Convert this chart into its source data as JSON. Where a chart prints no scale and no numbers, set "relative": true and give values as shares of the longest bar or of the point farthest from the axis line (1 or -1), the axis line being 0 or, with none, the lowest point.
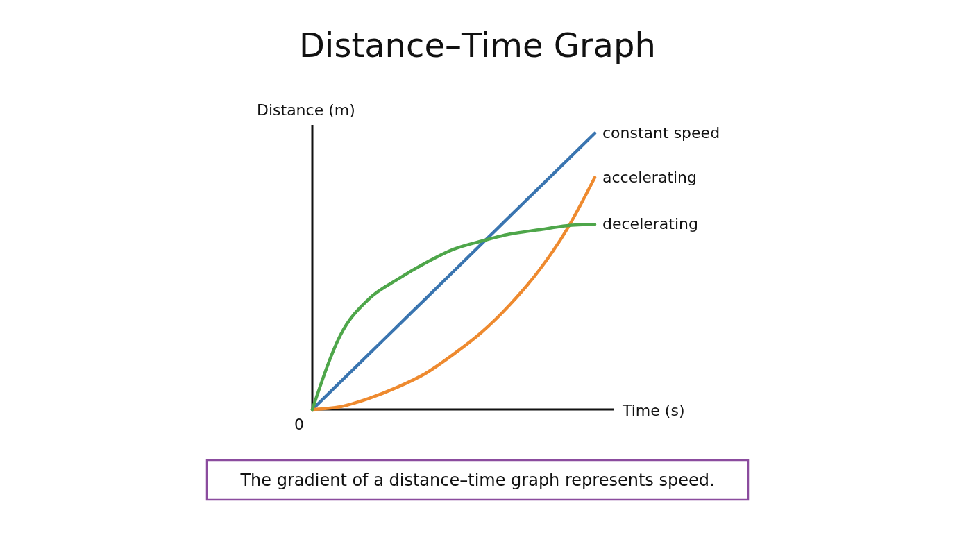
{
  "chart_data": {
    "type": "line",
    "title": "Distance–Time Graph",
    "xlabel": "Time (s)",
    "ylabel": "Distance (m)",
    "relative": true,
    "categories": [
      null,
      null,
      null,
      null,
      null,
      null,
      null,
      null,
      null,
      null,
      null
    ],
    "series": [
      {
        "name": "constant speed",
        "color": "#3a75b0",
        "values": [
          0,
          0.1,
          0.2,
          0.3,
          0.4,
          0.5,
          0.6,
          0.7,
          0.8,
          0.9,
          1
        ]
      },
      {
        "name": "accelerating",
        "color": "#ee8a2f",
        "values": [
          0,
          0.01,
          0.04,
          0.08,
          0.13,
          0.2,
          0.28,
          0.38,
          0.5,
          0.65,
          0.84
        ]
      },
      {
        "name": "decelerating",
        "color": "#4ea64a",
        "values": [
          0,
          0.27,
          0.4,
          0.47,
          0.53,
          0.58,
          0.61,
          0.635,
          0.65,
          0.665,
          0.67
        ]
      }
    ],
    "annotations": [
      "0",
      "The gradient of a distance–time graph represents speed."
    ]
  }
}
